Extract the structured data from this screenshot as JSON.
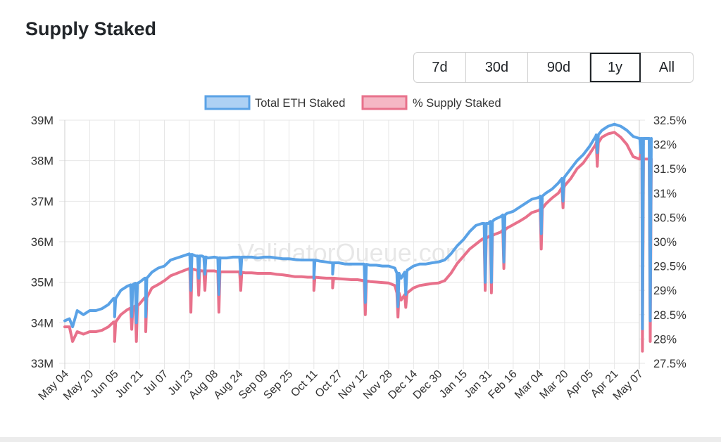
{
  "page": {
    "title": "Supply Staked"
  },
  "range_buttons": [
    {
      "label": "7d",
      "active": false
    },
    {
      "label": "30d",
      "active": false
    },
    {
      "label": "90d",
      "active": false
    },
    {
      "label": "1y",
      "active": true
    },
    {
      "label": "All",
      "active": false
    }
  ],
  "watermark": "ValidatorQueue.com",
  "colors": {
    "blue": "#5aa2e6",
    "red": "#e8718b",
    "grid": "#e6e6e6",
    "text": "#333333"
  },
  "chart_data": {
    "type": "line",
    "title": "",
    "legend": {
      "position": "top",
      "entries": [
        "Total ETH Staked",
        "% Supply Staked"
      ]
    },
    "grid": true,
    "x_tick_labels": [
      "May 04",
      "May 20",
      "Jun 05",
      "Jun 21",
      "Jul 07",
      "Jul 23",
      "Aug 08",
      "Aug 24",
      "Sep 09",
      "Sep 25",
      "Oct 11",
      "Oct 27",
      "Nov 12",
      "Nov 28",
      "Dec 14",
      "Dec 30",
      "Jan 15",
      "Jan 31",
      "Feb 16",
      "Mar 04",
      "Mar 20",
      "Apr 05",
      "Apr 21",
      "May 07"
    ],
    "y_left": {
      "ticks": [
        "33M",
        "34M",
        "35M",
        "36M",
        "37M",
        "38M",
        "39M"
      ],
      "range": [
        33,
        39
      ],
      "unit": "M"
    },
    "y_right": {
      "ticks": [
        "27.5%",
        "28%",
        "28.5%",
        "29%",
        "29.5%",
        "30%",
        "30.5%",
        "31%",
        "31.5%",
        "32%",
        "32.5%"
      ],
      "range": [
        27.5,
        32.5
      ],
      "unit": "%"
    },
    "series": [
      {
        "name": "Total ETH Staked",
        "axis": "left",
        "color": "#5aa2e6",
        "points": [
          [
            "May 04",
            34.05
          ],
          [
            "May 07",
            34.1
          ],
          [
            "May 09",
            33.9
          ],
          [
            "May 12",
            34.3
          ],
          [
            "May 16",
            34.2
          ],
          [
            "May 20",
            34.3
          ],
          [
            "May 24",
            34.3
          ],
          [
            "May 28",
            34.35
          ],
          [
            "Jun 01",
            34.45
          ],
          [
            "Jun 05",
            34.6
          ],
          [
            "Jun 09",
            34.8
          ],
          [
            "Jun 13",
            34.9
          ],
          [
            "Jun 17",
            34.95
          ],
          [
            "Jun 21",
            35.0
          ],
          [
            "Jun 25",
            35.1
          ],
          [
            "Jun 29",
            35.25
          ],
          [
            "Jul 03",
            35.35
          ],
          [
            "Jul 07",
            35.4
          ],
          [
            "Jul 11",
            35.55
          ],
          [
            "Jul 15",
            35.6
          ],
          [
            "Jul 19",
            35.65
          ],
          [
            "Jul 23",
            35.7
          ],
          [
            "Jul 27",
            35.65
          ],
          [
            "Jul 31",
            35.65
          ],
          [
            "Aug 04",
            35.6
          ],
          [
            "Aug 08",
            35.62
          ],
          [
            "Aug 12",
            35.6
          ],
          [
            "Aug 16",
            35.6
          ],
          [
            "Aug 20",
            35.62
          ],
          [
            "Aug 24",
            35.62
          ],
          [
            "Aug 28",
            35.62
          ],
          [
            "Sep 01",
            35.62
          ],
          [
            "Sep 05",
            35.6
          ],
          [
            "Sep 09",
            35.62
          ],
          [
            "Sep 13",
            35.62
          ],
          [
            "Sep 17",
            35.6
          ],
          [
            "Sep 21",
            35.58
          ],
          [
            "Sep 25",
            35.58
          ],
          [
            "Sep 29",
            35.56
          ],
          [
            "Oct 03",
            35.55
          ],
          [
            "Oct 07",
            35.55
          ],
          [
            "Oct 11",
            35.55
          ],
          [
            "Oct 15",
            35.52
          ],
          [
            "Oct 19",
            35.5
          ],
          [
            "Oct 23",
            35.48
          ],
          [
            "Oct 27",
            35.48
          ],
          [
            "Oct 31",
            35.45
          ],
          [
            "Nov 04",
            35.45
          ],
          [
            "Nov 08",
            35.45
          ],
          [
            "Nov 12",
            35.45
          ],
          [
            "Nov 16",
            35.42
          ],
          [
            "Nov 20",
            35.42
          ],
          [
            "Nov 24",
            35.4
          ],
          [
            "Nov 28",
            35.4
          ],
          [
            "Dec 02",
            35.35
          ],
          [
            "Dec 06",
            35.1
          ],
          [
            "Dec 10",
            35.3
          ],
          [
            "Dec 14",
            35.4
          ],
          [
            "Dec 18",
            35.45
          ],
          [
            "Dec 22",
            35.45
          ],
          [
            "Dec 26",
            35.48
          ],
          [
            "Dec 30",
            35.5
          ],
          [
            "Jan 03",
            35.55
          ],
          [
            "Jan 07",
            35.7
          ],
          [
            "Jan 11",
            35.9
          ],
          [
            "Jan 15",
            36.05
          ],
          [
            "Jan 19",
            36.25
          ],
          [
            "Jan 23",
            36.4
          ],
          [
            "Jan 27",
            36.45
          ],
          [
            "Jan 31",
            36.45
          ],
          [
            "Feb 04",
            36.55
          ],
          [
            "Feb 08",
            36.62
          ],
          [
            "Feb 12",
            36.7
          ],
          [
            "Feb 16",
            36.75
          ],
          [
            "Feb 20",
            36.85
          ],
          [
            "Feb 24",
            36.95
          ],
          [
            "Feb 28",
            37.05
          ],
          [
            "Mar 04",
            37.1
          ],
          [
            "Mar 08",
            37.2
          ],
          [
            "Mar 12",
            37.3
          ],
          [
            "Mar 16",
            37.45
          ],
          [
            "Mar 20",
            37.6
          ],
          [
            "Mar 24",
            37.8
          ],
          [
            "Mar 28",
            38.0
          ],
          [
            "Apr 01",
            38.15
          ],
          [
            "Apr 05",
            38.35
          ],
          [
            "Apr 09",
            38.6
          ],
          [
            "Apr 13",
            38.75
          ],
          [
            "Apr 17",
            38.85
          ],
          [
            "Apr 21",
            38.9
          ],
          [
            "Apr 25",
            38.85
          ],
          [
            "Apr 29",
            38.75
          ],
          [
            "May 03",
            38.6
          ],
          [
            "May 07",
            38.55
          ]
        ]
      },
      {
        "name": "% Supply Staked",
        "axis": "right",
        "color": "#e8718b",
        "points": [
          [
            "May 04",
            28.25
          ],
          [
            "May 07",
            28.25
          ],
          [
            "May 09",
            27.95
          ],
          [
            "May 12",
            28.15
          ],
          [
            "May 16",
            28.1
          ],
          [
            "May 20",
            28.15
          ],
          [
            "May 24",
            28.15
          ],
          [
            "May 28",
            28.18
          ],
          [
            "Jun 01",
            28.25
          ],
          [
            "Jun 05",
            28.35
          ],
          [
            "Jun 09",
            28.5
          ],
          [
            "Jun 13",
            28.6
          ],
          [
            "Jun 17",
            28.65
          ],
          [
            "Jun 21",
            28.72
          ],
          [
            "Jun 25",
            28.85
          ],
          [
            "Jun 29",
            29.05
          ],
          [
            "Jul 03",
            29.12
          ],
          [
            "Jul 07",
            29.2
          ],
          [
            "Jul 11",
            29.3
          ],
          [
            "Jul 15",
            29.35
          ],
          [
            "Jul 19",
            29.4
          ],
          [
            "Jul 23",
            29.45
          ],
          [
            "Jul 27",
            29.42
          ],
          [
            "Jul 31",
            29.4
          ],
          [
            "Aug 04",
            29.4
          ],
          [
            "Aug 08",
            29.4
          ],
          [
            "Aug 12",
            29.38
          ],
          [
            "Aug 16",
            29.38
          ],
          [
            "Aug 20",
            29.38
          ],
          [
            "Aug 24",
            29.38
          ],
          [
            "Aug 28",
            29.36
          ],
          [
            "Sep 01",
            29.36
          ],
          [
            "Sep 05",
            29.35
          ],
          [
            "Sep 09",
            29.35
          ],
          [
            "Sep 13",
            29.35
          ],
          [
            "Sep 17",
            29.33
          ],
          [
            "Sep 21",
            29.32
          ],
          [
            "Sep 25",
            29.3
          ],
          [
            "Sep 29",
            29.28
          ],
          [
            "Oct 03",
            29.28
          ],
          [
            "Oct 07",
            29.27
          ],
          [
            "Oct 11",
            29.27
          ],
          [
            "Oct 15",
            29.26
          ],
          [
            "Oct 19",
            29.25
          ],
          [
            "Oct 23",
            29.25
          ],
          [
            "Oct 27",
            29.24
          ],
          [
            "Oct 31",
            29.23
          ],
          [
            "Nov 04",
            29.22
          ],
          [
            "Nov 08",
            29.22
          ],
          [
            "Nov 12",
            29.2
          ],
          [
            "Nov 16",
            29.18
          ],
          [
            "Nov 20",
            29.17
          ],
          [
            "Nov 24",
            29.16
          ],
          [
            "Nov 28",
            29.15
          ],
          [
            "Dec 02",
            29.1
          ],
          [
            "Dec 06",
            28.8
          ],
          [
            "Dec 10",
            28.95
          ],
          [
            "Dec 14",
            29.05
          ],
          [
            "Dec 18",
            29.1
          ],
          [
            "Dec 22",
            29.12
          ],
          [
            "Dec 26",
            29.14
          ],
          [
            "Dec 30",
            29.15
          ],
          [
            "Jan 03",
            29.2
          ],
          [
            "Jan 07",
            29.35
          ],
          [
            "Jan 11",
            29.55
          ],
          [
            "Jan 15",
            29.7
          ],
          [
            "Jan 19",
            29.85
          ],
          [
            "Jan 23",
            29.95
          ],
          [
            "Jan 27",
            30.05
          ],
          [
            "Jan 31",
            30.1
          ],
          [
            "Feb 04",
            30.15
          ],
          [
            "Feb 08",
            30.2
          ],
          [
            "Feb 12",
            30.28
          ],
          [
            "Feb 16",
            30.35
          ],
          [
            "Feb 20",
            30.42
          ],
          [
            "Feb 24",
            30.5
          ],
          [
            "Feb 28",
            30.6
          ],
          [
            "Mar 04",
            30.65
          ],
          [
            "Mar 08",
            30.78
          ],
          [
            "Mar 12",
            30.9
          ],
          [
            "Mar 16",
            31.0
          ],
          [
            "Mar 20",
            31.15
          ],
          [
            "Mar 24",
            31.3
          ],
          [
            "Mar 28",
            31.5
          ],
          [
            "Apr 01",
            31.62
          ],
          [
            "Apr 05",
            31.8
          ],
          [
            "Apr 09",
            32.0
          ],
          [
            "Apr 13",
            32.15
          ],
          [
            "Apr 17",
            32.22
          ],
          [
            "Apr 21",
            32.25
          ],
          [
            "Apr 25",
            32.15
          ],
          [
            "Apr 29",
            32.0
          ],
          [
            "May 03",
            31.75
          ],
          [
            "May 07",
            31.7
          ]
        ]
      }
    ],
    "dips": [
      {
        "date": "May 09",
        "left": 33.85,
        "right": 27.75
      },
      {
        "date": "May 14",
        "left": 34.05,
        "right": 27.95
      },
      {
        "date": "Jun 05",
        "left": 34.15,
        "right": 27.95
      },
      {
        "date": "Jun 16",
        "left": 34.15,
        "right": 28.2
      },
      {
        "date": "Jun 19",
        "left": 34.0,
        "right": 27.95
      },
      {
        "date": "Jun 25",
        "left": 34.15,
        "right": 28.15
      },
      {
        "date": "Jul 24",
        "left": 34.8,
        "right": 28.55
      },
      {
        "date": "Jul 29",
        "left": 35.1,
        "right": 28.9
      },
      {
        "date": "Aug 02",
        "left": 35.2,
        "right": 29.0
      },
      {
        "date": "Aug 11",
        "left": 34.7,
        "right": 28.55
      },
      {
        "date": "Aug 25",
        "left": 35.2,
        "right": 29.0
      },
      {
        "date": "Oct 11",
        "left": 35.1,
        "right": 29.0
      },
      {
        "date": "Oct 23",
        "left": 35.2,
        "right": 29.05
      },
      {
        "date": "Nov 13",
        "left": 34.5,
        "right": 28.5
      },
      {
        "date": "Dec 04",
        "left": 34.4,
        "right": 28.45
      },
      {
        "date": "Dec 09",
        "left": 34.7,
        "right": 28.65
      },
      {
        "date": "Jan 29",
        "left": 35.0,
        "right": 29.0
      },
      {
        "date": "Feb 02",
        "left": 35.0,
        "right": 28.95
      },
      {
        "date": "Feb 10",
        "left": 35.5,
        "right": 29.45
      },
      {
        "date": "Mar 05",
        "left": 36.2,
        "right": 29.85
      },
      {
        "date": "Mar 19",
        "left": 37.0,
        "right": 30.7
      },
      {
        "date": "Apr 10",
        "left": 38.2,
        "right": 31.55
      },
      {
        "date": "May 08",
        "left": 38.2,
        "right": 31.85
      }
    ]
  }
}
